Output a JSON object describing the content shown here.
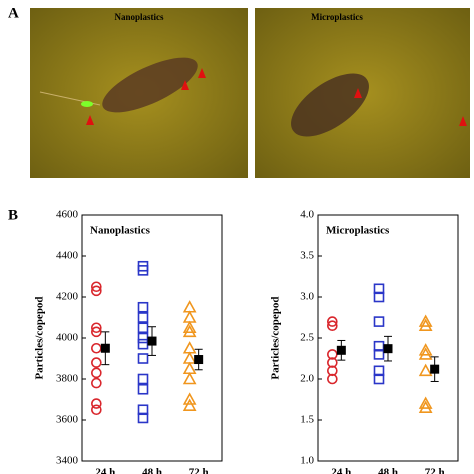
{
  "panels": {
    "a_label": "A",
    "b_label": "B",
    "image_titles": [
      "Nanoplastics",
      "Microplastics"
    ]
  },
  "chart_data": [
    {
      "type": "strip",
      "title": "Nanoplastics",
      "y_label": "Particles/copepod",
      "categories": [
        "24 h",
        "48 h",
        "72 h"
      ],
      "ylim": [
        3400,
        4600
      ],
      "yticks": [
        3400,
        3600,
        3800,
        4000,
        4200,
        4400,
        4600
      ],
      "groups": [
        {
          "color": "#d9262c",
          "marker": "circle",
          "values": [
            4250,
            4230,
            4050,
            4030,
            3950,
            3880,
            3830,
            3780,
            3680,
            3650
          ],
          "mean": 3950,
          "error": 80
        },
        {
          "color": "#2a36c8",
          "marker": "square",
          "values": [
            4350,
            4330,
            4150,
            4100,
            4050,
            4000,
            3970,
            3900,
            3800,
            3750,
            3650,
            3610
          ],
          "mean": 3985,
          "error": 70
        },
        {
          "color": "#f0961e",
          "marker": "triangle",
          "values": [
            4150,
            4100,
            4050,
            4030,
            3950,
            3900,
            3850,
            3800,
            3700,
            3670
          ],
          "mean": 3895,
          "error": 50
        }
      ]
    },
    {
      "type": "strip",
      "title": "Microplastics",
      "y_label": "Particles/copepod",
      "categories": [
        "24 h",
        "48 h",
        "72 h"
      ],
      "ylim": [
        1,
        4
      ],
      "yticks": [
        {
          "value": 1,
          "label": "1.0"
        },
        1.5,
        {
          "value": 2,
          "label": "2.0"
        },
        2.5,
        {
          "value": 3,
          "label": "3.0"
        },
        3.5,
        {
          "value": 4,
          "label": "4.0"
        }
      ],
      "groups": [
        {
          "color": "#d9262c",
          "marker": "circle",
          "values": [
            2.7,
            2.65,
            2.3,
            2.2,
            2.1,
            2.0
          ],
          "mean": 2.35,
          "error": 0.12
        },
        {
          "color": "#2a36c8",
          "marker": "square",
          "values": [
            3.1,
            3.0,
            2.7,
            2.4,
            2.3,
            2.1,
            2.0
          ],
          "mean": 2.37,
          "error": 0.15
        },
        {
          "color": "#f0961e",
          "marker": "triangle",
          "values": [
            2.7,
            2.65,
            2.35,
            2.3,
            2.1,
            1.7,
            1.65
          ],
          "mean": 2.12,
          "error": 0.15
        }
      ]
    }
  ]
}
